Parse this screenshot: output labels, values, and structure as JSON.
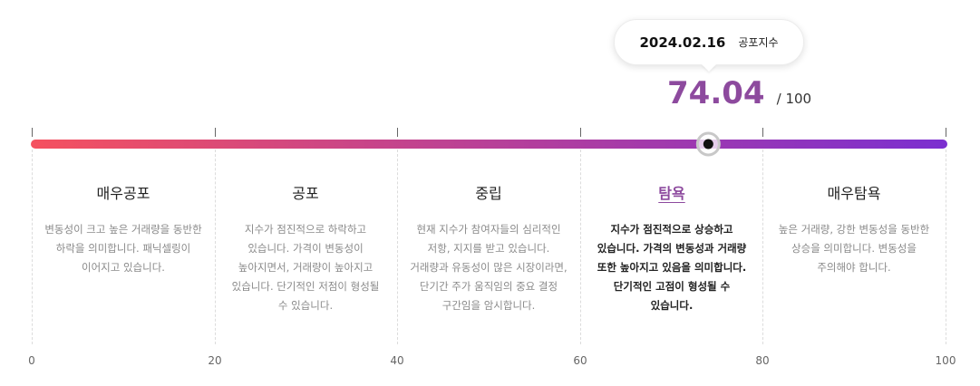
{
  "chart_data": {
    "type": "gauge",
    "value": 74.04,
    "max_label": "/ 100",
    "date": "2024.02.16",
    "index_name": "공포지수",
    "xlim": [
      0,
      100
    ],
    "ticks": [
      "0",
      "20",
      "40",
      "60",
      "80",
      "100"
    ],
    "tick_values": [
      0,
      20,
      40,
      60,
      80,
      100
    ],
    "colors": {
      "start": "#f5515f",
      "end": "#7b2fd0",
      "accent": "#8d4a9e"
    },
    "active_zone": 3,
    "zones": [
      {
        "title": "매우공포",
        "range": [
          0,
          20
        ],
        "description": "변동성이 크고 높은 거래량을 동반한 하락을 의미합니다. 패닉셀링이 이어지고 있습니다."
      },
      {
        "title": "공포",
        "range": [
          20,
          40
        ],
        "description": "지수가 점진적으로 하락하고 있습니다. 가격이 변동성이 높아지면서, 거래량이 높아지고 있습니다. 단기적인 저점이 형성될 수 있습니다."
      },
      {
        "title": "중립",
        "range": [
          40,
          60
        ],
        "description": "현재 지수가 참여자들의 심리적인 저항, 지지를 받고 있습니다. 거래량과 유동성이 많은 시장이라면, 단기간 주가 움직임의 중요 결정 구간임을 암시합니다."
      },
      {
        "title": "탐욕",
        "range": [
          60,
          80
        ],
        "description": "지수가 점진적으로 상승하고 있습니다. 가격의 변동성과 거래량 또한 높아지고 있음을 의미합니다. 단기적인 고점이 형성될 수 있습니다."
      },
      {
        "title": "매우탐욕",
        "range": [
          80,
          100
        ],
        "description": "높은 거래량, 강한 변동성을 동반한 상승을 의미합니다. 변동성을 주의해야 합니다."
      }
    ]
  }
}
